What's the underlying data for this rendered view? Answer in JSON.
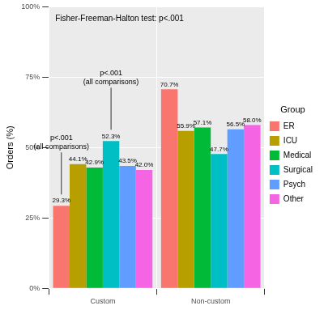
{
  "chart_data": {
    "type": "bar",
    "y_label": "Orders (%)",
    "legend_title": "Group",
    "legend": "right",
    "grid": true,
    "data_labels": true,
    "categories": [
      "Custom",
      "Non-custom"
    ],
    "series": [
      {
        "name": "ER",
        "color": "#F8766D",
        "values": [
          29.3,
          70.7
        ],
        "value_labels": [
          "29.3%",
          "70.7%"
        ]
      },
      {
        "name": "ICU",
        "color": "#B79F00",
        "values": [
          44.1,
          55.9
        ],
        "value_labels": [
          "44.1%",
          "55.9%"
        ]
      },
      {
        "name": "Medical",
        "color": "#00BA38",
        "values": [
          42.9,
          57.1
        ],
        "value_labels": [
          "42.9%",
          "57.1%"
        ]
      },
      {
        "name": "Surgical",
        "color": "#00BFC4",
        "values": [
          52.3,
          47.7
        ],
        "value_labels": [
          "52.3%",
          "47.7%"
        ]
      },
      {
        "name": "Psych",
        "color": "#619CFF",
        "values": [
          43.5,
          56.5
        ],
        "value_labels": [
          "43.5%",
          "56.5%"
        ]
      },
      {
        "name": "Other",
        "color": "#F564E3",
        "values": [
          42.0,
          58.0
        ],
        "value_labels": [
          "42.0%",
          "58.0%"
        ]
      }
    ],
    "ylim": [
      0,
      100
    ],
    "yticks": [
      {
        "value": 0,
        "label": "0%"
      },
      {
        "value": 25,
        "label": "25%"
      },
      {
        "value": 50,
        "label": "50%"
      },
      {
        "value": 75,
        "label": "75%"
      },
      {
        "value": 100,
        "label": "100%"
      }
    ],
    "annotations": [
      {
        "text": [
          "Fisher-Freeman-Halton test: p<.001"
        ]
      },
      {
        "text": [
          "p<.001",
          "(all comparisons)"
        ],
        "category": "Custom",
        "series": "ER"
      },
      {
        "text": [
          "p<.001",
          "(all comparisons)"
        ],
        "category": "Custom",
        "series": "Surgical"
      }
    ]
  }
}
